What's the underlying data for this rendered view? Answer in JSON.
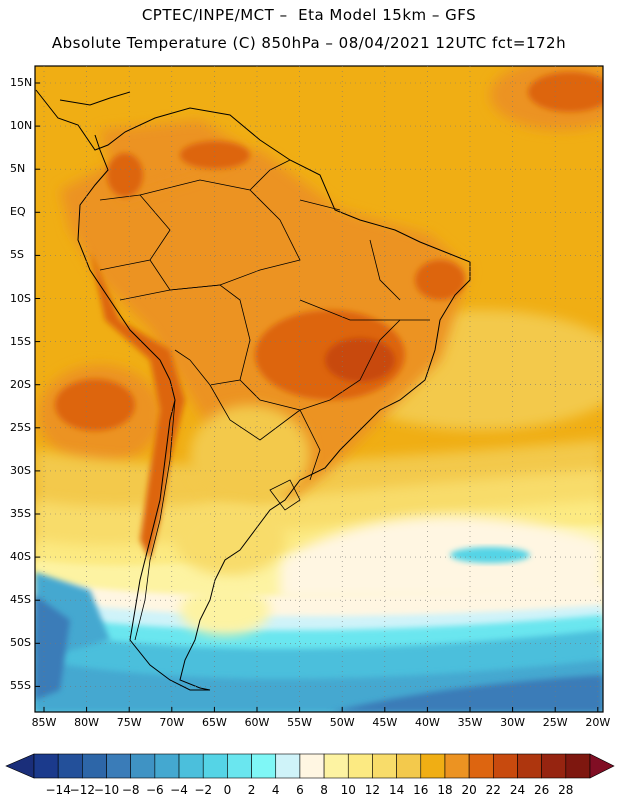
{
  "header": {
    "line1": "CPTEC/INPE/MCT –  Eta Model 15km – GFS",
    "line2": "Absolute Temperature (C) 850hPa – 08/04/2021 12UTC fct=172h"
  },
  "map": {
    "lat_labels": [
      "15N",
      "10N",
      "5N",
      "EQ",
      "5S",
      "10S",
      "15S",
      "20S",
      "25S",
      "30S",
      "35S",
      "40S",
      "45S",
      "50S",
      "55S"
    ],
    "lon_labels": [
      "85W",
      "80W",
      "75W",
      "70W",
      "65W",
      "60W",
      "55W",
      "50W",
      "45W",
      "40W",
      "35W",
      "30W",
      "25W",
      "20W"
    ]
  },
  "colorbar": {
    "labels": [
      "-14",
      "-12",
      "-10",
      "-8",
      "-6",
      "-4",
      "-2",
      "0",
      "2",
      "4",
      "6",
      "8",
      "10",
      "12",
      "14",
      "16",
      "18",
      "20",
      "22",
      "24",
      "26",
      "28"
    ],
    "colors": [
      "#1b3a8c",
      "#23509a",
      "#2d66a8",
      "#3a7cb8",
      "#3f93c4",
      "#44a8d0",
      "#4bbfdc",
      "#55d4e6",
      "#6ae6ef",
      "#7ff7f6",
      "#cff3f9",
      "#fff6e2",
      "#fdf3a2",
      "#fcea82",
      "#f8dc6a",
      "#f3c94c",
      "#f0ae14",
      "#ec9322",
      "#dd6510",
      "#c84a0e",
      "#ae360e",
      "#962410",
      "#7e170f"
    ],
    "under_color": "#1a2e7a",
    "over_color": "#800e24"
  }
}
